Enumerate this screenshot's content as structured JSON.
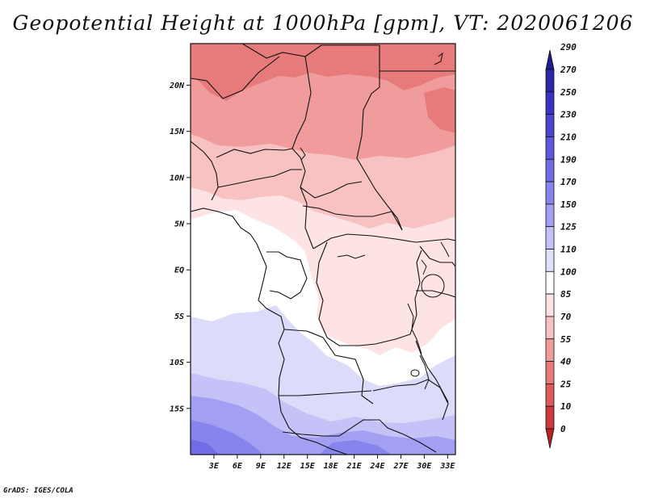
{
  "title": "Geopotential Height at 1000hPa [gpm], VT: 2020061206",
  "credit": "GrADS: IGES/COLA",
  "map": {
    "lon_range": [
      0,
      34
    ],
    "lat_range": [
      -20,
      24.5
    ],
    "lat_ticks": [
      {
        "value": 20,
        "label": "20N"
      },
      {
        "value": 15,
        "label": "15N"
      },
      {
        "value": 10,
        "label": "10N"
      },
      {
        "value": 5,
        "label": "5N"
      },
      {
        "value": 0,
        "label": "EQ"
      },
      {
        "value": -5,
        "label": "5S"
      },
      {
        "value": -10,
        "label": "10S"
      },
      {
        "value": -15,
        "label": "15S"
      }
    ],
    "lon_ticks": [
      {
        "value": 3,
        "label": "3E"
      },
      {
        "value": 6,
        "label": "6E"
      },
      {
        "value": 9,
        "label": "9E"
      },
      {
        "value": 12,
        "label": "12E"
      },
      {
        "value": 15,
        "label": "15E"
      },
      {
        "value": 18,
        "label": "18E"
      },
      {
        "value": 21,
        "label": "21E"
      },
      {
        "value": 24,
        "label": "24E"
      },
      {
        "value": 27,
        "label": "27E"
      },
      {
        "value": 30,
        "label": "30E"
      },
      {
        "value": 33,
        "label": "33E"
      }
    ]
  },
  "colorbar": {
    "labels": [
      "290",
      "270",
      "250",
      "230",
      "210",
      "190",
      "170",
      "150",
      "125",
      "110",
      "100",
      "85",
      "70",
      "55",
      "40",
      "25",
      "10",
      "0"
    ],
    "colors": [
      "#1f1e8c",
      "#2a28a8",
      "#3934c0",
      "#4a45cf",
      "#5d58dc",
      "#716ce6",
      "#8784ee",
      "#a3a0f3",
      "#c4c2f7",
      "#e0e0fb",
      "#ffffff",
      "#fde3e3",
      "#f8c2c2",
      "#f19c9c",
      "#e77b7b",
      "#dc5a5a",
      "#cc3a3a",
      "#b82222"
    ]
  }
}
